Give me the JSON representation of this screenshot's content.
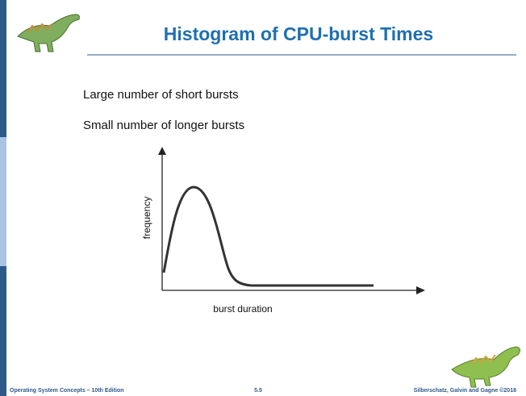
{
  "header": {
    "title": "Histogram of CPU-burst Times"
  },
  "bullets": [
    "Large number of short bursts",
    "Small number of longer bursts"
  ],
  "figure": {
    "y_axis_label": "frequency",
    "x_axis_label": "burst duration"
  },
  "footer": {
    "left": "Operating System Concepts – 10th Edition",
    "center": "5.5",
    "right": "Silberschatz, Galvin and Gagne ©2018"
  }
}
